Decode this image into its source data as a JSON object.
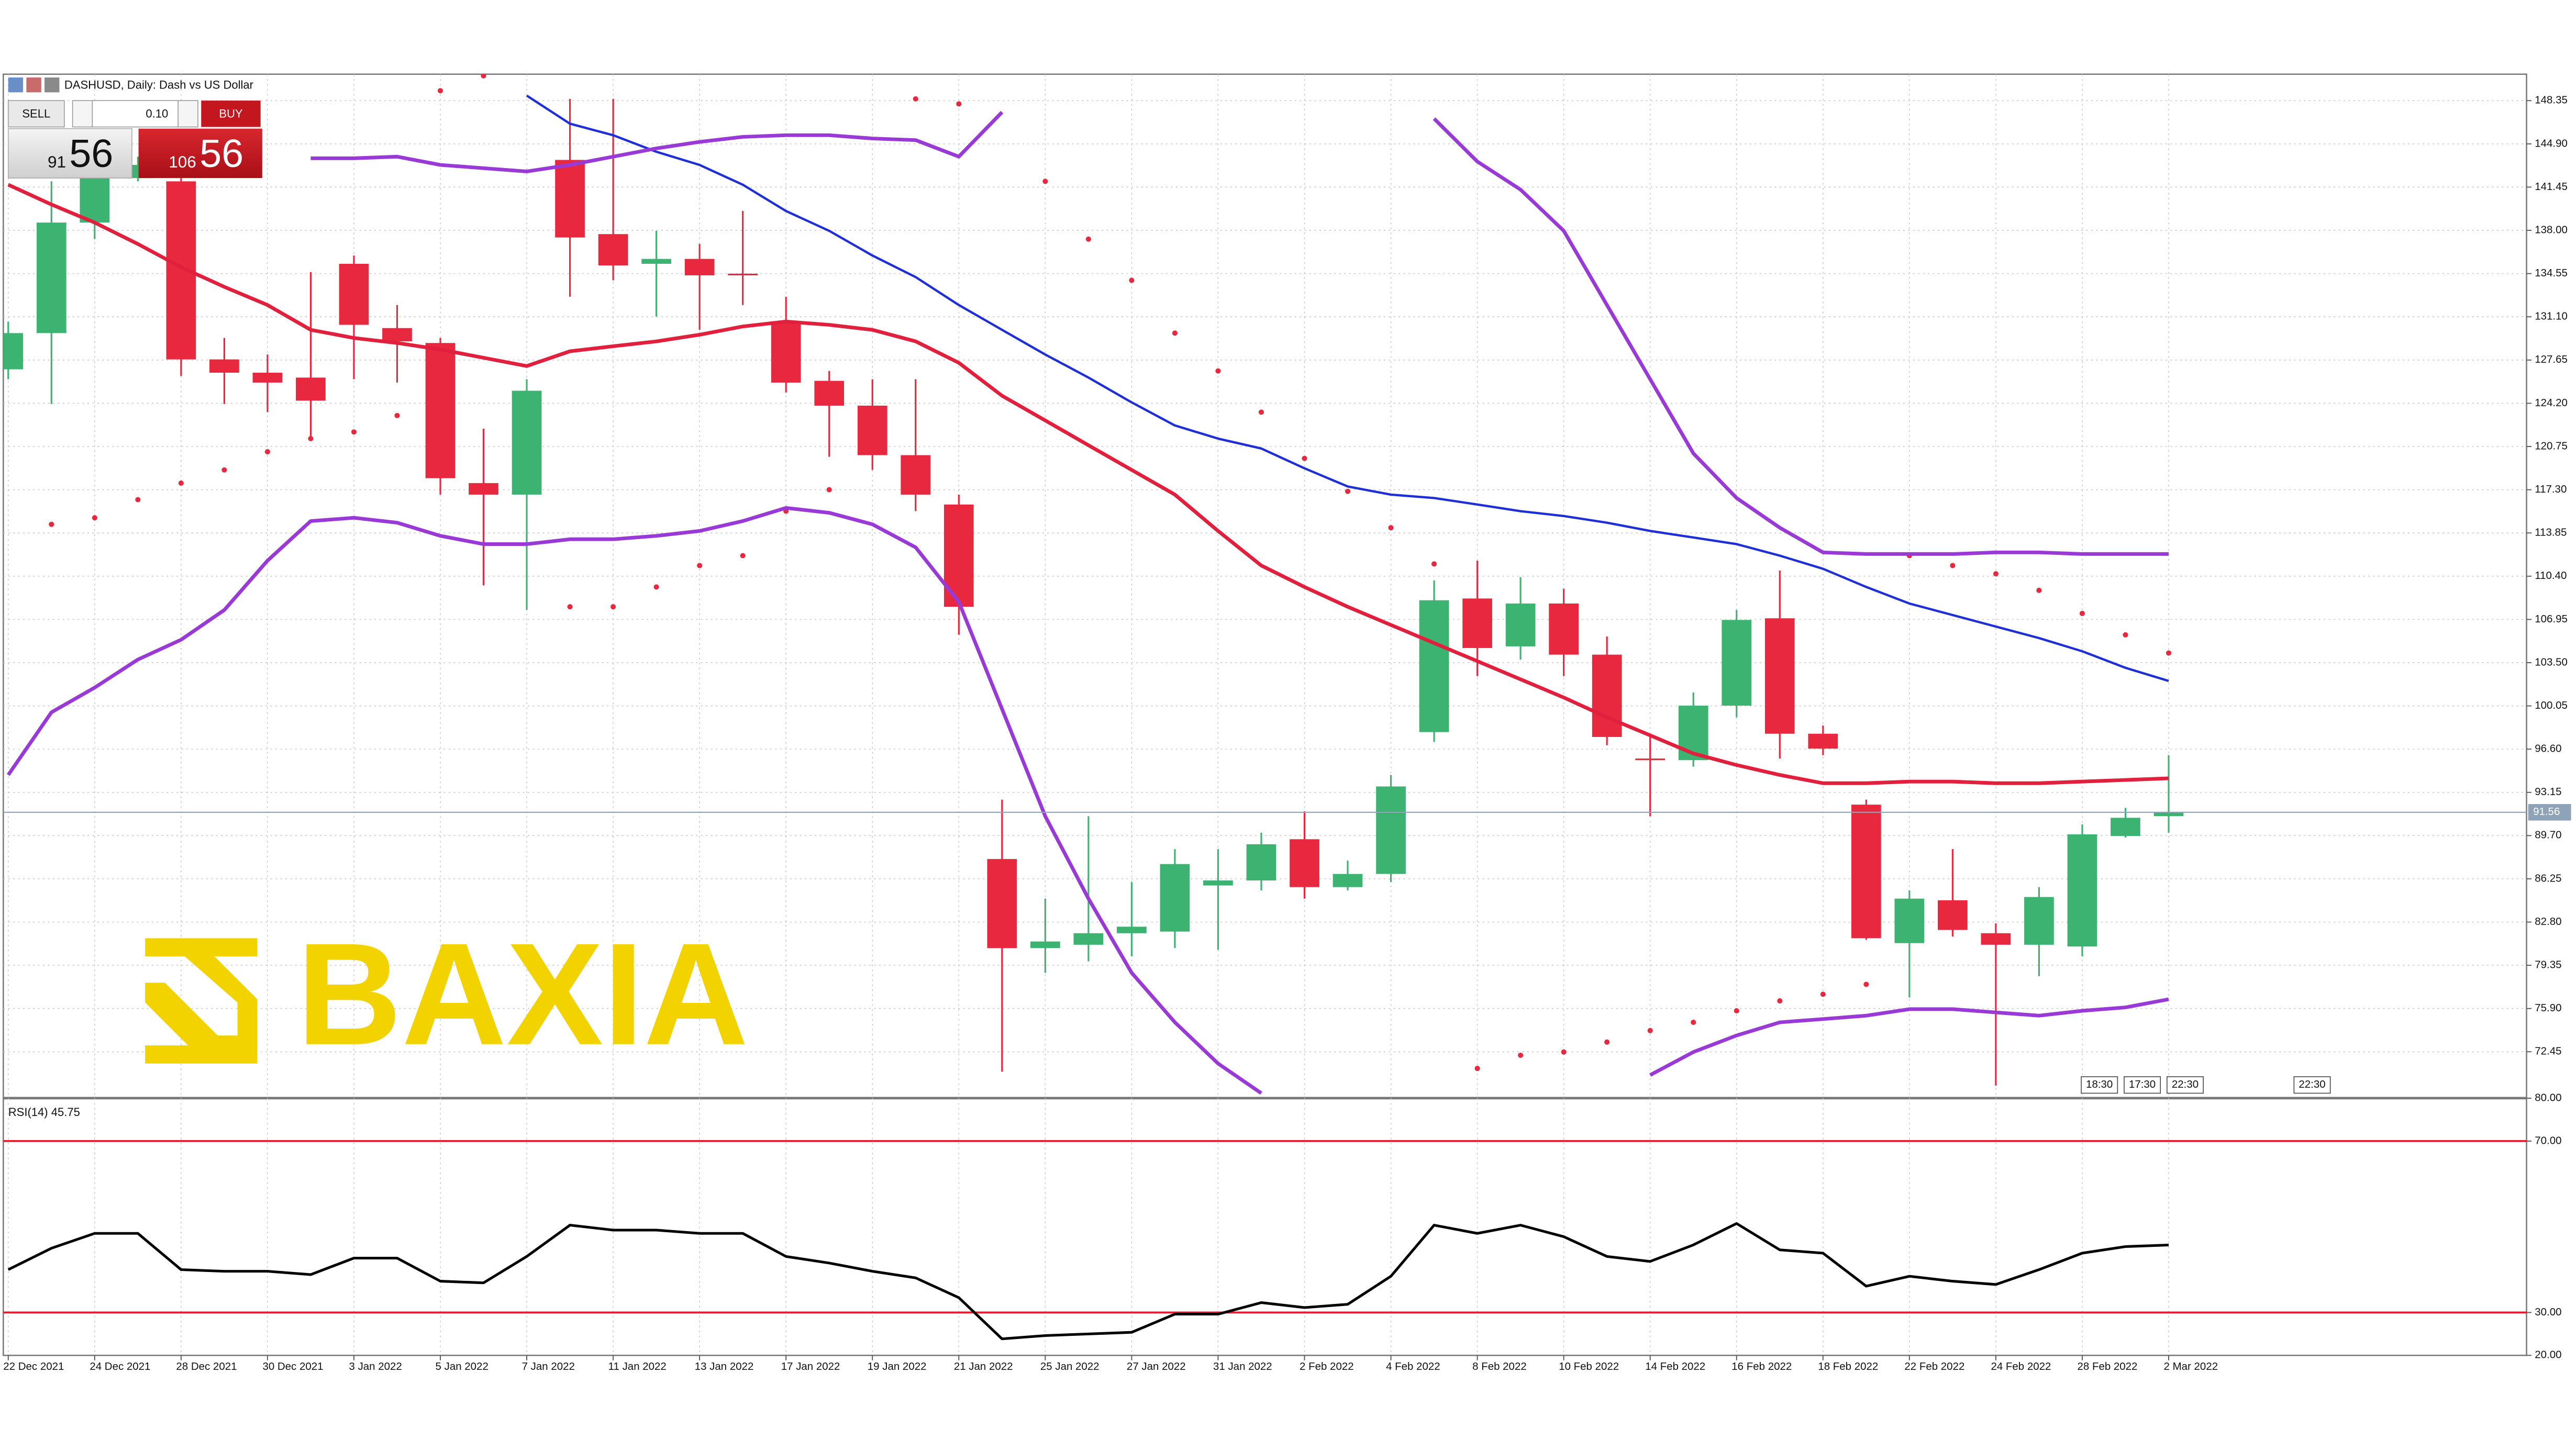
{
  "header": {
    "symbol": "DASHUSD, Daily: Dash vs US Dollar"
  },
  "trade_panel": {
    "sell": "SELL",
    "volume": "0.10",
    "buy": "BUY",
    "sell_big": "91",
    "sell_small": "56",
    "buy_big": "106",
    "buy_small": "56"
  },
  "watermark": "BAXIA",
  "time_markers": [
    "18:30",
    "17:30",
    "22:30",
    "22:30"
  ],
  "chart_data": [
    {
      "type": "candlestick",
      "up_color": "#3cb371",
      "down_color": "#e8283f",
      "grid": true,
      "categories": [
        "22 Dec 2021",
        null,
        "24 Dec 2021",
        null,
        "28 Dec 2021",
        null,
        "30 Dec 2021",
        null,
        "3 Jan 2022",
        null,
        "5 Jan 2022",
        null,
        "7 Jan 2022",
        null,
        "11 Jan 2022",
        null,
        "13 Jan 2022",
        null,
        "17 Jan 2022",
        null,
        "19 Jan 2022",
        null,
        "21 Jan 2022",
        null,
        "25 Jan 2022",
        null,
        "27 Jan 2022",
        null,
        "31 Jan 2022",
        null,
        "2 Feb 2022",
        null,
        "4 Feb 2022",
        null,
        "8 Feb 2022",
        null,
        "10 Feb 2022",
        null,
        "14 Feb 2022",
        null,
        "16 Feb 2022",
        null,
        "18 Feb 2022",
        null,
        "22 Feb 2022",
        null,
        "24 Feb 2022",
        null,
        "28 Feb 2022",
        null,
        "2 Mar 2022"
      ],
      "open": [
        126.91,
        129.8,
        138.62,
        142.17,
        141.91,
        127.7,
        126.64,
        126.25,
        135.33,
        130.2,
        129.01,
        117.83,
        116.91,
        143.62,
        137.7,
        135.33,
        135.72,
        134.54,
        130.72,
        125.99,
        124.01,
        120.06,
        116.12,
        87.83,
        80.72,
        80.99,
        81.91,
        82.04,
        85.72,
        86.12,
        89.41,
        85.59,
        86.64,
        97.96,
        108.62,
        104.8,
        108.22,
        104.14,
        95.85,
        95.72,
        100.07,
        107.04,
        97.83,
        92.17,
        81.12,
        84.54,
        81.91,
        80.99,
        80.85,
        89.67,
        91.25
      ],
      "high": [
        130.72,
        141.91,
        143.22,
        143.88,
        142.17,
        129.41,
        128.09,
        134.67,
        135.99,
        132.04,
        129.41,
        122.17,
        126.12,
        148.49,
        148.49,
        137.96,
        136.91,
        139.54,
        132.7,
        126.78,
        126.12,
        126.12,
        116.91,
        92.57,
        84.67,
        91.25,
        85.99,
        88.62,
        88.62,
        89.93,
        91.64,
        87.7,
        94.54,
        110.06,
        111.64,
        110.33,
        109.41,
        105.59,
        97.57,
        101.12,
        107.7,
        110.85,
        98.48,
        92.57,
        85.33,
        88.62,
        82.7,
        85.59,
        90.59,
        91.91,
        96.12
      ],
      "low": [
        126.12,
        124.14,
        137.3,
        141.91,
        126.38,
        124.14,
        123.49,
        121.51,
        126.12,
        125.85,
        116.91,
        109.67,
        107.7,
        132.7,
        134.01,
        131.12,
        130.06,
        132.04,
        125.06,
        119.93,
        118.88,
        115.59,
        105.72,
        70.86,
        78.75,
        79.67,
        80.06,
        80.72,
        80.59,
        85.33,
        84.67,
        85.33,
        85.99,
        97.17,
        102.43,
        103.75,
        102.43,
        96.91,
        91.25,
        95.2,
        99.14,
        95.85,
        96.12,
        81.38,
        76.78,
        81.64,
        69.75,
        78.49,
        80.06,
        89.54,
        89.93
      ],
      "close": [
        129.8,
        138.62,
        142.17,
        143.22,
        127.7,
        126.64,
        125.85,
        124.41,
        130.46,
        129.14,
        118.22,
        116.91,
        125.2,
        137.43,
        135.2,
        135.72,
        134.41,
        134.5,
        125.85,
        124.01,
        120.06,
        116.91,
        107.96,
        80.72,
        81.25,
        81.91,
        82.43,
        87.43,
        86.12,
        89.01,
        85.59,
        86.64,
        93.62,
        108.48,
        104.67,
        108.22,
        104.14,
        97.57,
        95.8,
        100.07,
        106.91,
        97.83,
        96.64,
        81.51,
        84.67,
        82.17,
        80.99,
        84.8,
        89.8,
        91.12,
        91.56
      ],
      "overlays": [
        {
          "style": "line",
          "color": "#e0203c",
          "values": [
            141.64,
            140.06,
            138.62,
            136.91,
            135.06,
            133.49,
            132.04,
            130.06,
            129.41,
            129.01,
            128.49,
            127.83,
            127.17,
            128.35,
            128.75,
            129.14,
            129.67,
            130.33,
            130.72,
            130.46,
            130.06,
            129.14,
            127.43,
            124.8,
            122.83,
            120.85,
            118.88,
            116.91,
            114.01,
            111.25,
            109.54,
            107.96,
            106.51,
            105.06,
            103.62,
            102.17,
            100.72,
            99.14,
            97.7,
            96.25,
            95.33,
            94.54,
            93.88,
            93.88,
            94.01,
            94.01,
            93.88,
            93.88,
            94.01,
            94.14,
            94.27
          ]
        },
        {
          "style": "line",
          "color": "#1f2fd6",
          "values": [
            null,
            null,
            null,
            null,
            null,
            null,
            null,
            null,
            null,
            null,
            null,
            null,
            148.75,
            146.51,
            145.59,
            144.27,
            143.22,
            141.64,
            139.54,
            137.96,
            135.99,
            134.27,
            132.04,
            130.06,
            128.09,
            126.25,
            124.27,
            122.43,
            121.38,
            120.59,
            119.01,
            117.56,
            116.91,
            116.64,
            116.12,
            115.59,
            115.2,
            114.67,
            114.01,
            113.49,
            112.96,
            112.04,
            110.99,
            109.54,
            108.22,
            107.3,
            106.38,
            105.46,
            104.41,
            103.09,
            102.04
          ]
        },
        {
          "style": "line",
          "color": "#9a3ad6",
          "values": [
            null,
            null,
            null,
            null,
            null,
            null,
            null,
            143.75,
            143.75,
            143.88,
            143.22,
            142.96,
            142.7,
            143.22,
            143.88,
            144.54,
            145.06,
            145.46,
            145.59,
            145.59,
            145.33,
            145.2,
            143.88,
            147.43,
            null,
            null,
            null,
            null,
            null,
            null,
            null,
            null,
            null,
            146.91,
            143.49,
            141.25,
            137.96,
            132.04,
            126.12,
            120.2,
            116.64,
            114.27,
            112.3,
            112.17,
            112.17,
            112.17,
            112.3,
            112.3,
            112.17,
            112.17,
            112.17
          ]
        },
        {
          "style": "line",
          "color": "#9a3ad6",
          "values": [
            94.54,
            99.54,
            101.51,
            103.75,
            105.33,
            107.7,
            111.64,
            114.8,
            115.06,
            114.67,
            113.62,
            112.96,
            112.96,
            113.35,
            113.35,
            113.62,
            114.01,
            114.8,
            115.85,
            115.46,
            114.54,
            112.7,
            108.35,
            99.8,
            91.25,
            84.67,
            78.75,
            74.8,
            71.51,
            69.14,
            null,
            null,
            null,
            null,
            null,
            null,
            null,
            null,
            70.59,
            72.43,
            73.75,
            74.8,
            75.06,
            75.33,
            75.85,
            75.85,
            75.59,
            75.33,
            75.72,
            75.99,
            76.64
          ]
        },
        {
          "style": "dots",
          "color": "#e8283f",
          "values": [
            null,
            114.54,
            115.06,
            116.51,
            117.83,
            118.88,
            120.33,
            121.38,
            121.91,
            123.22,
            149.14,
            150.33,
            null,
            107.96,
            107.96,
            109.54,
            111.25,
            112.04,
            115.59,
            117.3,
            122.17,
            148.49,
            148.09,
            null,
            141.91,
            137.3,
            134.01,
            129.8,
            126.78,
            123.49,
            119.8,
            117.17,
            114.27,
            111.38,
            71.12,
            72.17,
            72.43,
            73.22,
            74.14,
            74.8,
            75.72,
            76.51,
            77.04,
            77.83,
            112.04,
            111.25,
            110.59,
            109.27,
            107.43,
            105.72,
            104.27
          ]
        }
      ],
      "last_price": 91.56,
      "ylim": [
        68.88,
        150.46
      ],
      "yticks": [
        148.35,
        {
          "value": 144.9,
          "label": "144.90"
        },
        141.45,
        {
          "value": 138,
          "label": "138.00"
        },
        134.55,
        {
          "value": 131.1,
          "label": "131.10"
        },
        127.65,
        {
          "value": 124.2,
          "label": "124.20"
        },
        120.75,
        {
          "value": 117.3,
          "label": "117.30"
        },
        113.85,
        {
          "value": 110.4,
          "label": "110.40"
        },
        106.95,
        {
          "value": 103.5,
          "label": "103.50"
        },
        100.05,
        {
          "value": 96.6,
          "label": "96.60"
        },
        93.15,
        {
          "value": 89.7,
          "label": "89.70"
        },
        86.25,
        {
          "value": 82.8,
          "label": "82.80"
        },
        79.35,
        {
          "value": 75.9,
          "label": "75.90"
        },
        72.45
      ]
    },
    {
      "type": "line",
      "label": "RSI(14)",
      "color": "#000000",
      "level_color": "#e0202a",
      "levels": [
        70,
        30
      ],
      "values": [
        40.0,
        45.0,
        48.46,
        48.46,
        40.0,
        39.62,
        39.62,
        38.85,
        42.69,
        42.69,
        37.31,
        36.92,
        43.08,
        50.38,
        49.23,
        49.23,
        48.46,
        48.46,
        43.08,
        41.54,
        39.62,
        38.08,
        33.46,
        23.85,
        24.62,
        25.0,
        25.38,
        29.62,
        29.62,
        32.31,
        31.15,
        31.92,
        38.46,
        50.38,
        48.46,
        50.38,
        47.69,
        43.08,
        41.92,
        45.77,
        50.77,
        44.62,
        43.85,
        36.15,
        38.46,
        37.31,
        36.54,
        40.0,
        43.85,
        45.38,
        45.75
      ],
      "ylim": [
        20,
        80.4
      ],
      "yticks": [
        {
          "value": 80,
          "label": "80.00"
        },
        {
          "value": 70,
          "label": "70.00"
        },
        {
          "value": 30,
          "label": "30.00"
        },
        {
          "value": 20,
          "label": "20.00"
        }
      ]
    }
  ]
}
